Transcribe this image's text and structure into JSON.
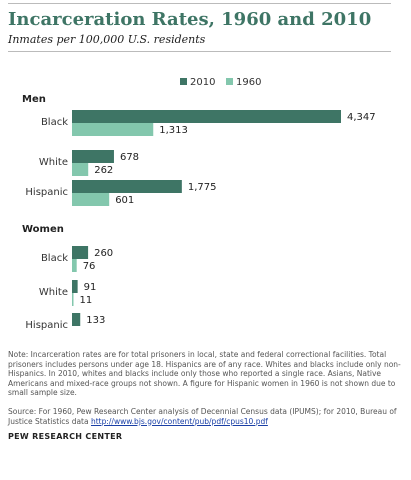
{
  "header": {
    "title": "Incarceration Rates, 1960 and 2010",
    "subtitle": "Inmates per 100,000 U.S. residents"
  },
  "colors": {
    "y2010": "#3e7565",
    "y1960": "#83c7ad"
  },
  "chart_data": {
    "type": "bar",
    "orientation": "horizontal",
    "title": "Incarceration Rates, 1960 and 2010",
    "subtitle": "Inmates per 100,000 U.S. residents",
    "legend": [
      "2010",
      "1960"
    ],
    "legend_placement": "top-center",
    "grid": false,
    "xlim": [
      0,
      4347
    ],
    "groups": [
      {
        "name": "Men",
        "categories": [
          {
            "label": "Black",
            "values": [
              4347,
              1313
            ],
            "value_labels": [
              "4,347",
              "1,313"
            ]
          },
          {
            "label": "White",
            "values": [
              678,
              262
            ],
            "value_labels": [
              "678",
              "262"
            ]
          },
          {
            "label": "Hispanic",
            "values": [
              1775,
              601
            ],
            "value_labels": [
              "1,775",
              "601"
            ]
          }
        ]
      },
      {
        "name": "Women",
        "categories": [
          {
            "label": "Black",
            "values": [
              260,
              76
            ],
            "value_labels": [
              "260",
              "76"
            ]
          },
          {
            "label": "White",
            "values": [
              91,
              11
            ],
            "value_labels": [
              "91",
              "11"
            ]
          },
          {
            "label": "Hispanic",
            "values": [
              133,
              null
            ],
            "value_labels": [
              "133",
              ""
            ]
          }
        ]
      }
    ]
  },
  "notes": {
    "note": "Note: Incarceration rates are for total prisoners in local, state and federal correctional facilities. Total prisoners includes persons under age 18. Hispanics are of any race. Whites and blacks include only non-Hispanics. In 2010, whites and blacks include only those who reported a single race. Asians, Native Americans and mixed-race groups not shown. A figure for Hispanic women in 1960 is not shown due to small sample size.",
    "source": "Source: For 1960, Pew Research Center analysis of Decennial Census data (IPUMS); for 2010, Bureau of Justice Statistics data",
    "source_link": "http://www.bjs.gov/content/pub/pdf/cpus10.pdf",
    "footer": "PEW RESEARCH CENTER"
  }
}
